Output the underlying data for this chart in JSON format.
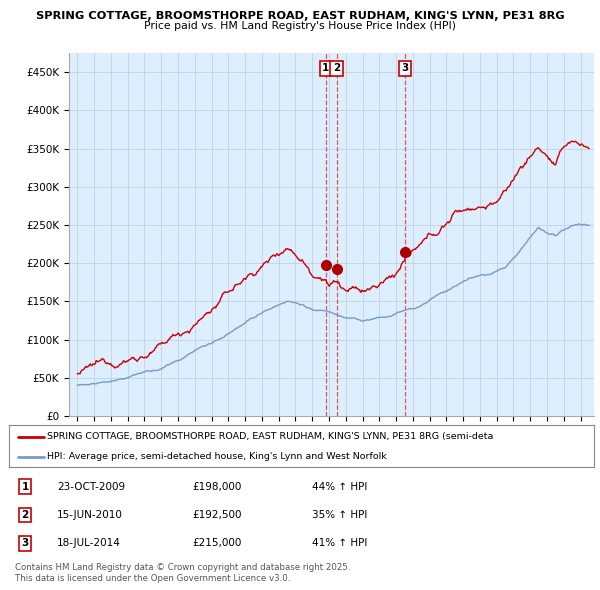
{
  "title1": "SPRING COTTAGE, BROOMSTHORPE ROAD, EAST RUDHAM, KING'S LYNN, PE31 8RG",
  "title2": "Price paid vs. HM Land Registry's House Price Index (HPI)",
  "ylabel_ticks": [
    "£0",
    "£50K",
    "£100K",
    "£150K",
    "£200K",
    "£250K",
    "£300K",
    "£350K",
    "£400K",
    "£450K"
  ],
  "ytick_values": [
    0,
    50000,
    100000,
    150000,
    200000,
    250000,
    300000,
    350000,
    400000,
    450000
  ],
  "ylim": [
    0,
    475000
  ],
  "xlim_start": 1994.5,
  "xlim_end": 2025.8,
  "sale_dates": [
    2009.81,
    2010.46,
    2014.54
  ],
  "sale_prices": [
    198000,
    192500,
    215000
  ],
  "sale_labels": [
    "1",
    "2",
    "3"
  ],
  "vline_color": "#dd4444",
  "sale_marker_color": "#aa0000",
  "legend_entries": [
    "SPRING COTTAGE, BROOMSTHORPE ROAD, EAST RUDHAM, KING'S LYNN, PE31 8RG (semi-deta",
    "HPI: Average price, semi-detached house, King's Lynn and West Norfolk"
  ],
  "footnote1": "Contains HM Land Registry data © Crown copyright and database right 2025.",
  "footnote2": "This data is licensed under the Open Government Licence v3.0.",
  "table_entries": [
    {
      "num": "1",
      "date": "23-OCT-2009",
      "price": "£198,000",
      "change": "44% ↑ HPI"
    },
    {
      "num": "2",
      "date": "15-JUN-2010",
      "price": "£192,500",
      "change": "35% ↑ HPI"
    },
    {
      "num": "3",
      "date": "18-JUL-2014",
      "price": "£215,000",
      "change": "41% ↑ HPI"
    }
  ],
  "red_line_color": "#cc0000",
  "blue_line_color": "#7799cc",
  "chart_bg_color": "#ddeeff",
  "bg_color": "#ffffff",
  "grid_color": "#bbccdd"
}
